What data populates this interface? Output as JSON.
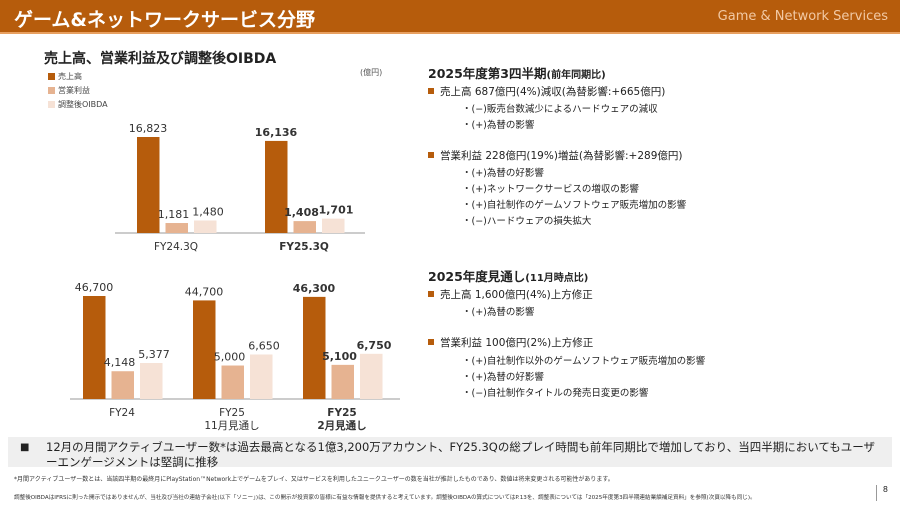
{
  "header": {
    "title": "ゲーム&ネットワークサービス分野",
    "subtitle": "Game & Network Services"
  },
  "chart_section": {
    "title": "売上高、営業利益及び調整後OIBDA",
    "unit": "(億円)",
    "legend": [
      "売上高",
      "営業利益",
      "調整後OIBDA"
    ]
  },
  "colors": {
    "sales": "#B65C0C",
    "operating_income": "#E6B391",
    "oibda": "#F6E2D6",
    "header": "#B65C0C"
  },
  "chart_data": [
    {
      "type": "bar",
      "categories": [
        "FY24.3Q",
        "FY25.3Q"
      ],
      "series": [
        {
          "name": "売上高",
          "values": [
            16823,
            16136
          ],
          "labels": [
            "16,823",
            "16,136"
          ]
        },
        {
          "name": "営業利益",
          "values": [
            1181,
            1408
          ],
          "labels": [
            "1,181",
            "1,408"
          ]
        },
        {
          "name": "調整後OIBDA",
          "values": [
            1480,
            1701
          ],
          "labels": [
            "1,480",
            "1,701"
          ]
        }
      ],
      "highlight_category": "FY25.3Q"
    },
    {
      "type": "bar",
      "categories": [
        "FY24",
        "FY25 11月見通し",
        "FY25 2月見通し"
      ],
      "category_lines": [
        [
          "FY24"
        ],
        [
          "FY25",
          "11月見通し"
        ],
        [
          "FY25",
          "2月見通し"
        ]
      ],
      "series": [
        {
          "name": "売上高",
          "values": [
            46700,
            44700,
            46300
          ],
          "labels": [
            "46,700",
            "44,700",
            "46,300"
          ]
        },
        {
          "name": "営業利益",
          "values": [
            4148,
            5000,
            5100
          ],
          "labels": [
            "4,148",
            "5,000",
            "5,100"
          ]
        },
        {
          "name": "調整後OIBDA",
          "values": [
            5377,
            6650,
            6750
          ],
          "labels": [
            "5,377",
            "6,650",
            "6,750"
          ]
        }
      ],
      "highlight_category": "FY25 2月見通し"
    }
  ],
  "q3": {
    "title": "2025年度第3四半期",
    "title_note": "(前年同期比)",
    "sales": "売上高 687億円(4%)減収(為替影響:+665億円)",
    "sales_items": [
      "・(−)販売台数減少によるハードウェアの減収",
      "・(+)為替の影響"
    ],
    "oi": "営業利益 228億円(19%)増益(為替影響:+289億円)",
    "oi_items": [
      "・(+)為替の好影響",
      "・(+)ネットワークサービスの増収の影響",
      "・(+)自社制作のゲームソフトウェア販売増加の影響",
      "・(−)ハードウェアの損失拡大"
    ]
  },
  "fy": {
    "title": "2025年度見通し",
    "title_note": "(11月時点比)",
    "sales": "売上高 1,600億円(4%)上方修正",
    "sales_items": [
      "・(+)為替の影響"
    ],
    "oi": "営業利益 100億円(2%)上方修正",
    "oi_items": [
      "・(+)自社制作以外のゲームソフトウェア販売増加の影響",
      "・(+)為替の好影響",
      "・(−)自社制作タイトルの発売日変更の影響"
    ]
  },
  "note": {
    "bullet": "■",
    "text": "12月の月間アクティブユーザー数*は過去最高となる1億3,200万アカウント、FY25.3Qの総プレイ時間も前年同期比で増加しており、当四半期においてもユーザーエンゲージメントは堅調に推移"
  },
  "footnotes": [
    "*月間アクティブユーザー数とは、当該四半期の最終月にPlayStation™Network上でゲームをプレイ、又はサービスを利用したユニークユーザーの数を当社が推計したものであり、数値は将来変更される可能性があります。",
    "調整後OIBDAはIFRSに則った開示ではありませんが、当社及び当社の連結子会社(以下「ソニー」)は、この開示が投資家の皆様に有益な情報を提供すると考えています。調整後OIBDAの算式についてはP.13を、調整表については「2025年度第3四半期連結業績補足資料」を参照(次頁以降も同じ)。"
  ],
  "page_number": "8"
}
